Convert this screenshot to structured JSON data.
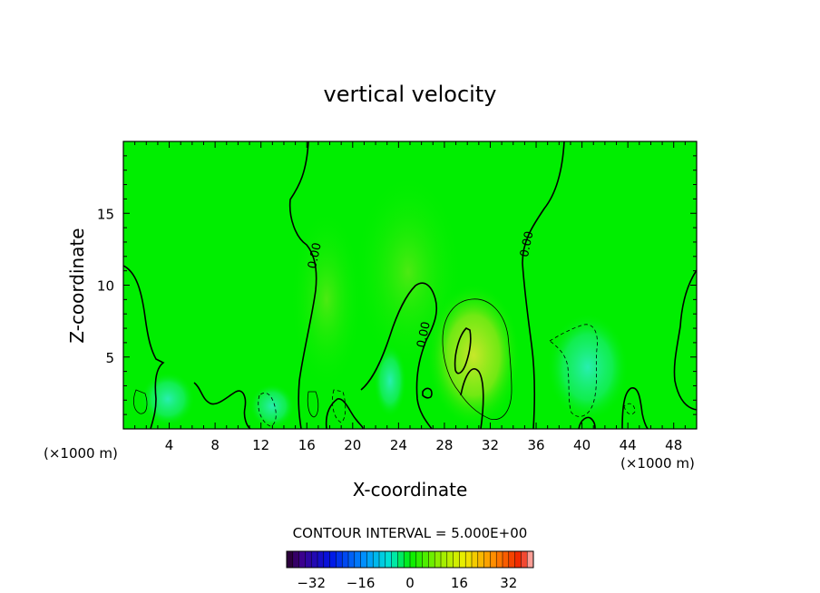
{
  "chart_data": {
    "type": "heatmap",
    "title": "vertical velocity",
    "xlabel": "X-coordinate",
    "ylabel": "Z-coordinate",
    "x_unit_left": "(×1000 m)",
    "x_unit_right": "(×1000 m)",
    "xlim": [
      0,
      50
    ],
    "ylim": [
      0,
      20
    ],
    "x_ticks": [
      4,
      8,
      12,
      16,
      20,
      24,
      28,
      32,
      36,
      40,
      44,
      48
    ],
    "y_ticks": [
      5,
      10,
      15
    ],
    "contour_interval_text": "CONTOUR INTERVAL = 5.000E+00",
    "contour_labels": [
      {
        "text": "0.00",
        "x": 17.0,
        "y": 12.0
      },
      {
        "text": "0.00",
        "x": 26.5,
        "y": 6.5
      },
      {
        "text": "0.00",
        "x": 35.5,
        "y": 12.8
      }
    ],
    "colorbar": {
      "min": -40,
      "max": 40,
      "ticks": [
        -32,
        -16,
        0,
        16,
        32
      ],
      "tick_labels": [
        "−32",
        "−16",
        "0",
        "16",
        "32"
      ]
    },
    "field_features": [
      {
        "kind": "updraft_max",
        "x": 30.0,
        "y": 5.5,
        "value": 10
      },
      {
        "kind": "downdraft_min",
        "x": 40.0,
        "y": 4.5,
        "value": -5
      },
      {
        "kind": "updraft_weak",
        "x": 25.0,
        "y": 8.0,
        "value": 4
      }
    ]
  },
  "colors": {
    "background_field": "#00ee00",
    "updraft": "#aaee22",
    "downdraft": "#22eeaa"
  }
}
